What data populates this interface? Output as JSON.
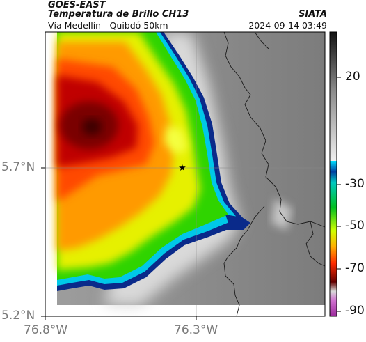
{
  "header": {
    "satellite": "GOES-EAST",
    "product": "Temperatura de Brillo CH13",
    "region": "Vía Medellín - Quibdó 50km",
    "organization": "SIATA",
    "timestamp": "2024-09-14 03:49"
  },
  "map": {
    "lat_ticks": [
      "5.7°N",
      "5.2°N"
    ],
    "lon_ticks": [
      "76.8°W",
      "76.3°W"
    ],
    "marker": "star-marker",
    "gridlines": true
  },
  "colorbar": {
    "tick_labels": [
      "20",
      "-30",
      "-50",
      "-70",
      "-90"
    ],
    "colors": {
      "warm_top": "#111111",
      "warm_mid": "#9a9a9a",
      "cold_cyan": "#00c8e8",
      "cold_green": "#00c020",
      "cold_yellow": "#ffff00",
      "cold_red": "#ff2a00",
      "cold_darkred": "#640000",
      "coldest_purple": "#b040b0"
    }
  }
}
